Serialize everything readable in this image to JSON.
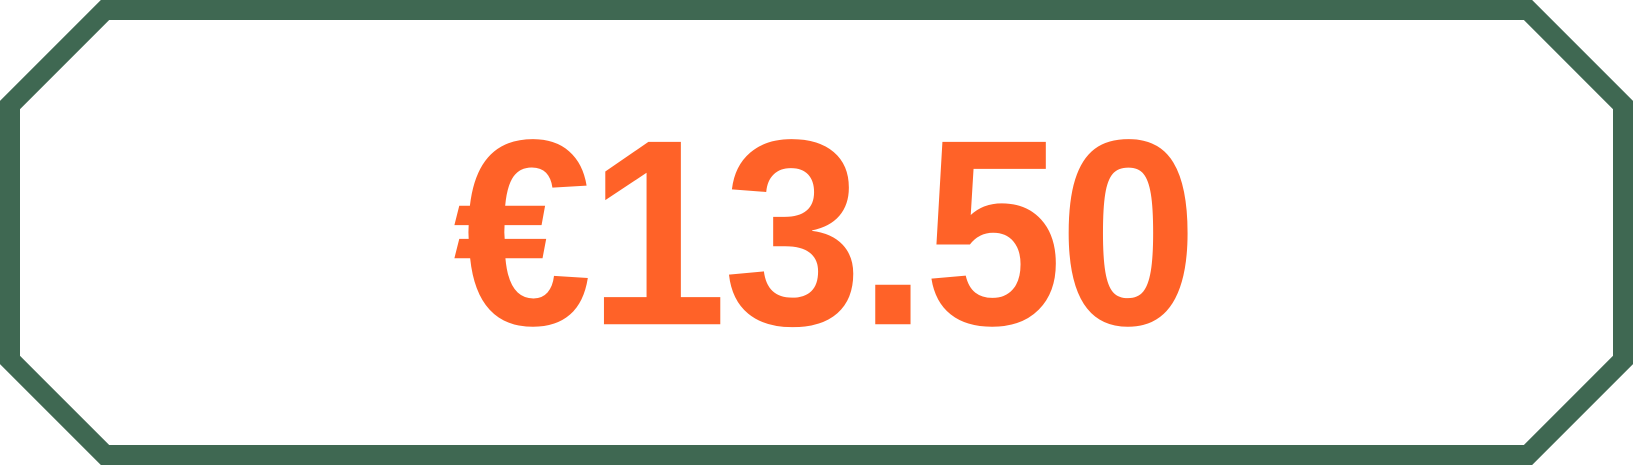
{
  "price_tag": {
    "price_text": "€13.50",
    "colors": {
      "border": "#3f6852",
      "price": "#ff6228",
      "background": "#ffffff"
    }
  }
}
